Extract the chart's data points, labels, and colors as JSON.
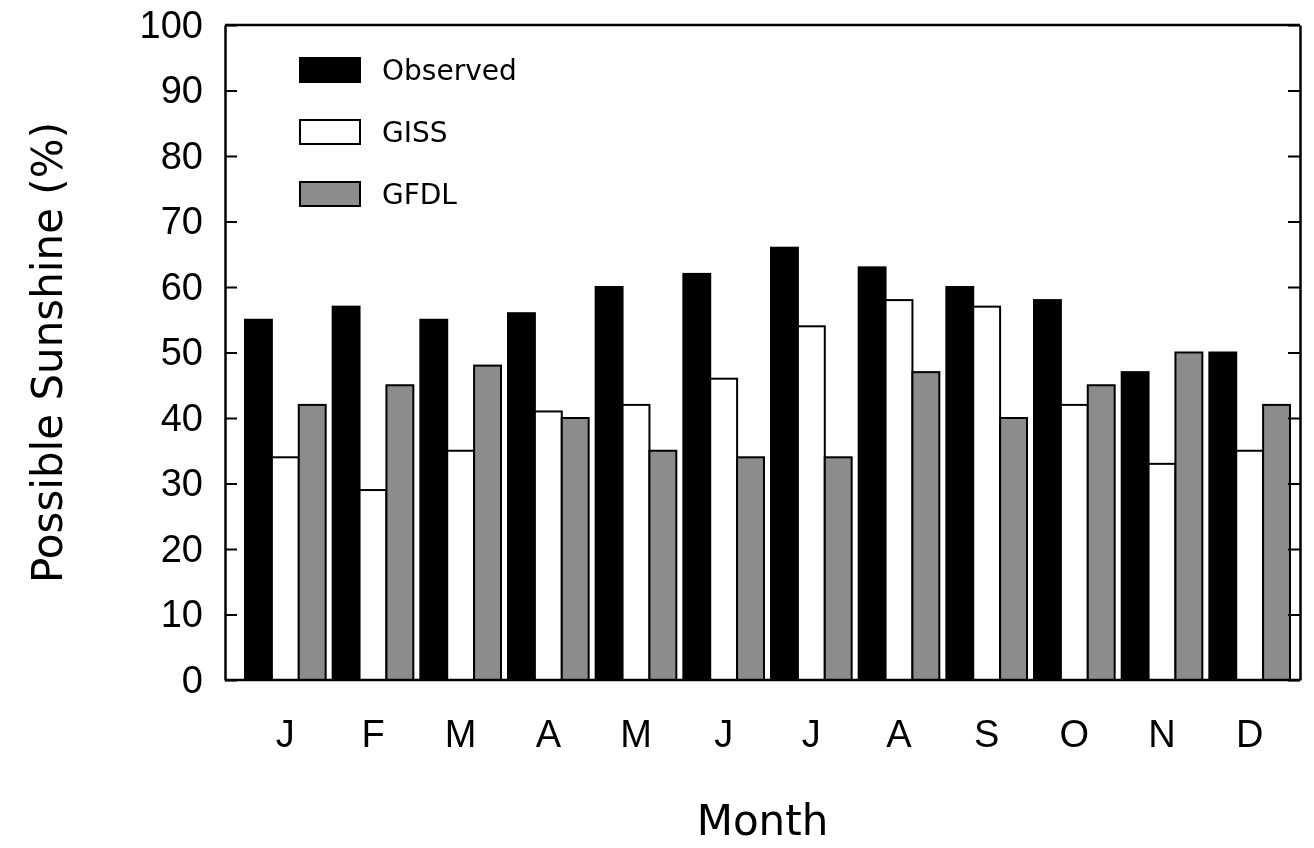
{
  "chart_data": {
    "type": "bar",
    "xlabel": "Month",
    "ylabel": "Possible Sunshine (%)",
    "categories": [
      "J",
      "F",
      "M",
      "A",
      "M",
      "J",
      "J",
      "A",
      "S",
      "O",
      "N",
      "D"
    ],
    "series": [
      {
        "name": "Observed",
        "color": "#000000",
        "values": [
          55,
          57,
          55,
          56,
          60,
          62,
          66,
          63,
          60,
          58,
          47,
          50
        ]
      },
      {
        "name": "GISS",
        "color": "#ffffff",
        "values": [
          34,
          29,
          35,
          41,
          42,
          46,
          54,
          58,
          57,
          42,
          33,
          35
        ]
      },
      {
        "name": "GFDL",
        "color": "#8c8c8c",
        "values": [
          42,
          45,
          48,
          40,
          35,
          34,
          34,
          47,
          40,
          45,
          50,
          42
        ]
      }
    ],
    "ylim": [
      0,
      100
    ],
    "yticks": [
      0,
      10,
      20,
      30,
      40,
      50,
      60,
      70,
      80,
      90,
      100
    ],
    "grid": false,
    "legend": "top left"
  }
}
